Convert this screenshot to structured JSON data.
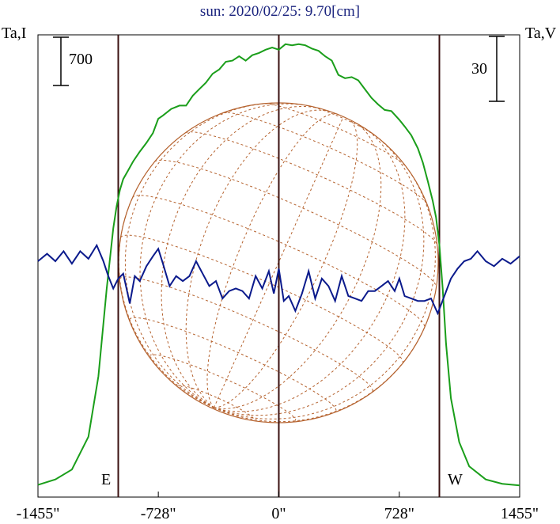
{
  "title": "sun: 2020/02/25: 9.70[cm]",
  "left_axis_label": "Ta,I",
  "right_axis_label": "Ta,V",
  "left_scale_bar": "700",
  "right_scale_bar": "30",
  "east_label": "E",
  "west_label": "W",
  "colors": {
    "stokes_i": "#1a9e1a",
    "stokes_v": "#0b1a8c",
    "grid": "#b5622e",
    "limb_lines": "#3a1010",
    "title": "#1a237e"
  },
  "chart_data": {
    "type": "line",
    "xlabel": "",
    "ylabel": "",
    "x_ticks": [
      "-1455\"",
      "-728\"",
      "0\"",
      "728\"",
      "1455\""
    ],
    "xlim": [
      -1455,
      1455
    ],
    "grid": false,
    "limb_markers": [
      -970,
      0,
      970
    ],
    "series": [
      {
        "name": "Ta,I",
        "axis": "left",
        "ylim": [
          0,
          4000
        ],
        "x": [
          -1455,
          -1350,
          -1250,
          -1150,
          -1090,
          -1040,
          -1000,
          -980,
          -960,
          -940,
          -910,
          -880,
          -840,
          -800,
          -760,
          -728,
          -700,
          -650,
          -600,
          -560,
          -520,
          -480,
          -440,
          -400,
          -360,
          -320,
          -280,
          -240,
          -200,
          -160,
          -120,
          -80,
          -40,
          0,
          40,
          80,
          120,
          160,
          200,
          240,
          280,
          320,
          360,
          400,
          440,
          480,
          520,
          560,
          600,
          640,
          680,
          728,
          760,
          800,
          840,
          870,
          900,
          930,
          950,
          970,
          990,
          1010,
          1040,
          1090,
          1150,
          1250,
          1350,
          1455
        ],
        "values": [
          10,
          60,
          150,
          450,
          1000,
          1800,
          2350,
          2550,
          2700,
          2800,
          2880,
          2960,
          3050,
          3130,
          3220,
          3350,
          3380,
          3440,
          3470,
          3470,
          3560,
          3620,
          3680,
          3760,
          3800,
          3870,
          3880,
          3920,
          3880,
          3930,
          3950,
          3980,
          4000,
          3980,
          4030,
          4020,
          4030,
          4020,
          3990,
          3970,
          3920,
          3880,
          3750,
          3720,
          3730,
          3700,
          3620,
          3540,
          3480,
          3430,
          3420,
          3340,
          3280,
          3200,
          3080,
          2950,
          2780,
          2600,
          2450,
          2200,
          1800,
          1300,
          800,
          400,
          180,
          60,
          20,
          5
        ]
      },
      {
        "name": "Ta,V",
        "axis": "right",
        "ylim": [
          -43,
          43
        ],
        "x": [
          -1455,
          -1400,
          -1350,
          -1300,
          -1250,
          -1200,
          -1150,
          -1100,
          -1060,
          -1030,
          -1000,
          -970,
          -940,
          -900,
          -870,
          -840,
          -800,
          -760,
          -728,
          -700,
          -660,
          -620,
          -580,
          -540,
          -500,
          -460,
          -420,
          -380,
          -340,
          -300,
          -260,
          -220,
          -180,
          -140,
          -100,
          -60,
          -30,
          0,
          30,
          60,
          100,
          140,
          180,
          220,
          260,
          300,
          340,
          380,
          420,
          460,
          500,
          540,
          580,
          620,
          660,
          700,
          728,
          760,
          800,
          840,
          880,
          920,
          960,
          1000,
          1040,
          1080,
          1120,
          1160,
          1200,
          1250,
          1300,
          1350,
          1400,
          1455
        ],
        "values": [
          0,
          1.5,
          0,
          2,
          -0.5,
          2,
          0.5,
          3.2,
          0,
          -3,
          -5.5,
          -3.5,
          -2.5,
          -8.5,
          -3,
          -4,
          -1,
          1,
          2.5,
          -0.5,
          -5,
          -3,
          -4,
          -3,
          0,
          -2.5,
          -5,
          -4,
          -7.5,
          -6,
          -5.5,
          -6,
          -7.5,
          -3,
          -5.5,
          -2,
          -6.5,
          -1.5,
          -8,
          -7,
          -10,
          -6.5,
          -2,
          -7.5,
          -3.5,
          -5,
          -8,
          -3,
          -7,
          -7.5,
          -8,
          -6,
          -6,
          -5,
          -4,
          -6,
          -3.5,
          -7,
          -7.5,
          -8,
          -8,
          -7.5,
          -10.5,
          -7,
          -3.5,
          -1.5,
          0,
          0.5,
          2,
          0,
          -1,
          0.5,
          -0.5,
          1
        ]
      }
    ]
  }
}
